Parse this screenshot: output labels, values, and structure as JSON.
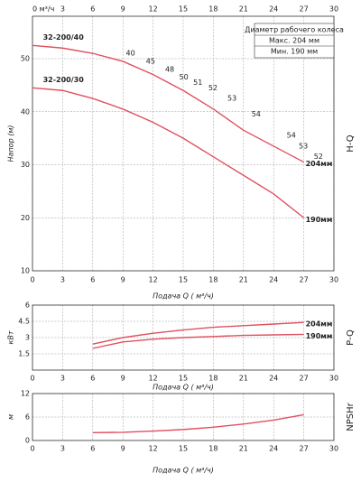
{
  "chart_data": [
    {
      "type": "line",
      "title": "H-Q",
      "y_label": "Напор (м)",
      "x_label": "Подача Q ( м³/ч)",
      "x": [
        0,
        3,
        6,
        9,
        12,
        15,
        18,
        21,
        24,
        27
      ],
      "series": [
        {
          "name": "204мм",
          "color": "#e0505f",
          "values": [
            52.5,
            52,
            51,
            49.5,
            47,
            44,
            40.5,
            36.5,
            33.5,
            30.5
          ]
        },
        {
          "name": "190мм",
          "color": "#e0505f",
          "values": [
            44.5,
            44,
            42.5,
            40.5,
            38,
            35,
            31.5,
            28,
            24.5,
            20
          ]
        }
      ],
      "xlim": [
        0,
        30
      ],
      "xticks": [
        0,
        3,
        6,
        9,
        12,
        15,
        18,
        21,
        24,
        27,
        30
      ],
      "x2ticks": [
        {
          "value": 0,
          "label": "0 м³/ч"
        },
        3,
        6,
        9,
        12,
        15,
        18,
        21,
        24,
        27,
        30
      ],
      "ylim": [
        10,
        58
      ],
      "yticks": [
        10,
        20,
        30,
        40,
        50
      ],
      "grid": true,
      "annotations": [
        {
          "text": "32-200/40",
          "x": 0.5,
          "y": 54
        },
        {
          "text": "32-200/30",
          "x": 0.5,
          "y": 46
        }
      ],
      "efficiency_labels": [
        {
          "value": 40,
          "x": 9.3,
          "y": 51
        },
        {
          "value": 45,
          "x": 11.3,
          "y": 49.5
        },
        {
          "value": 48,
          "x": 13.2,
          "y": 48
        },
        {
          "value": 50,
          "x": 14.6,
          "y": 46.5
        },
        {
          "value": 51,
          "x": 16,
          "y": 45.5
        },
        {
          "value": 52,
          "x": 17.5,
          "y": 44.5
        },
        {
          "value": 53,
          "x": 19.4,
          "y": 42.5
        },
        {
          "value": 54,
          "x": 21.8,
          "y": 39.5
        },
        {
          "value": 54,
          "x": 25.3,
          "y": 35.5
        },
        {
          "value": 53,
          "x": 26.5,
          "y": 33.5
        },
        {
          "value": 52,
          "x": 28,
          "y": 31.5
        }
      ],
      "legend": {
        "title": "Диаметр рабочего колеса",
        "max": "Макс. 204 мм",
        "min": "Мин. 190 мм"
      }
    },
    {
      "type": "line",
      "title": "P-Q",
      "y_label": "кВт",
      "x_label": "Подача Q ( м³/ч)",
      "x": [
        6,
        9,
        12,
        15,
        18,
        21,
        24,
        27
      ],
      "series": [
        {
          "name": "204мм",
          "color": "#e0505f",
          "values": [
            2.4,
            3.0,
            3.4,
            3.7,
            3.95,
            4.1,
            4.25,
            4.4
          ]
        },
        {
          "name": "190мм",
          "color": "#e0505f",
          "values": [
            2.0,
            2.6,
            2.85,
            3.0,
            3.1,
            3.2,
            3.25,
            3.3
          ]
        }
      ],
      "xlim": [
        0,
        30
      ],
      "xticks": [
        0,
        3,
        6,
        9,
        12,
        15,
        18,
        21,
        24,
        27,
        30
      ],
      "ylim": [
        0,
        6
      ],
      "yticks": [
        1.5,
        3,
        4.5,
        6
      ],
      "grid": true
    },
    {
      "type": "line",
      "title": "NPSHr",
      "y_label": "м",
      "x_label": "Подача Q ( м³/ч)",
      "x": [
        6,
        9,
        12,
        15,
        18,
        21,
        24,
        27
      ],
      "series": [
        {
          "name": "NPSHr",
          "color": "#e0505f",
          "values": [
            2,
            2.1,
            2.4,
            2.8,
            3.4,
            4.2,
            5.2,
            6.6
          ]
        }
      ],
      "xlim": [
        0,
        30
      ],
      "xticks": [
        0,
        3,
        6,
        9,
        12,
        15,
        18,
        21,
        24,
        27,
        30
      ],
      "ylim": [
        0,
        12
      ],
      "yticks": [
        0,
        6,
        12
      ],
      "grid": true
    }
  ]
}
